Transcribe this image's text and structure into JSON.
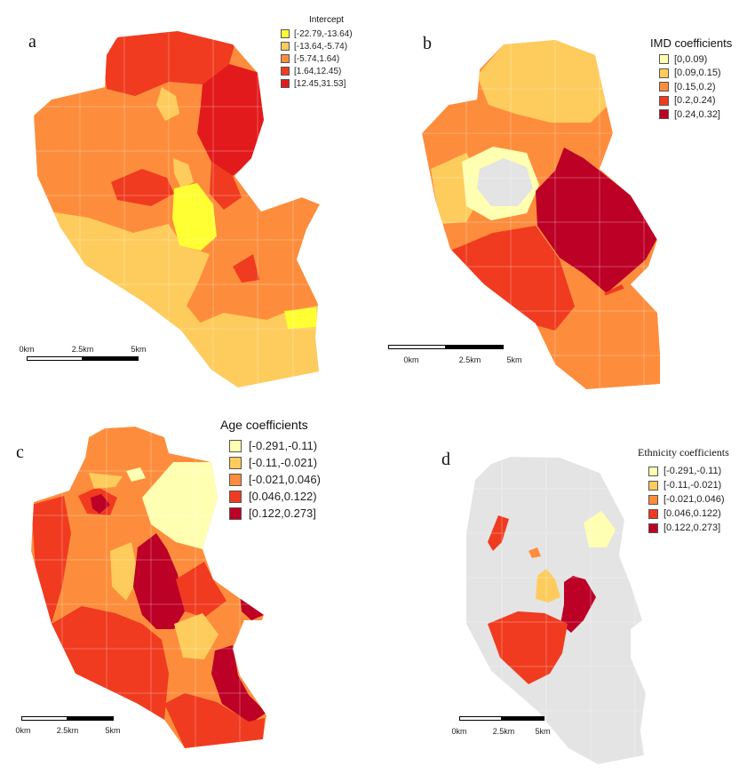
{
  "colors": {
    "yellow": "#ffff33",
    "light_yellow": "#ffffb2",
    "gold": "#fecc5c",
    "orange": "#fd8d3c",
    "red": "#f03b20",
    "dark_red": "#bd0026",
    "no_data": "#e4e4e4",
    "boundary": "#ffffff"
  },
  "scale_labels": [
    "0km",
    "2.5km",
    "5km"
  ],
  "panels": [
    {
      "letter": "a",
      "legend_title": "Intercept",
      "classes": [
        {
          "label": "[-22.79,-13.64)",
          "color": "#ffff33"
        },
        {
          "label": "[-13.64,-5.74)",
          "color": "#fecc5c"
        },
        {
          "label": "[-5.74,1.64)",
          "color": "#fd8d3c"
        },
        {
          "label": "[1.64,12.45)",
          "color": "#f03b20"
        },
        {
          "label": "[12.45,31.53]",
          "color": "#e31a1c"
        }
      ]
    },
    {
      "letter": "b",
      "legend_title": "IMD coefficients",
      "classes": [
        {
          "label": "[0,0.09)",
          "color": "#ffffb2"
        },
        {
          "label": "[0.09,0.15)",
          "color": "#fecc5c"
        },
        {
          "label": "[0.15,0.2)",
          "color": "#fd8d3c"
        },
        {
          "label": "[0.2,0.24)",
          "color": "#f03b20"
        },
        {
          "label": "[0.24,0.32]",
          "color": "#bd0026"
        }
      ]
    },
    {
      "letter": "c",
      "legend_title": "Age coefficients",
      "classes": [
        {
          "label": "[-0.291,-0.11)",
          "color": "#ffffb2"
        },
        {
          "label": "[-0.11,-0.021)",
          "color": "#fecc5c"
        },
        {
          "label": "[-0.021,0.046)",
          "color": "#fd8d3c"
        },
        {
          "label": "[0.046,0.122)",
          "color": "#f03b20"
        },
        {
          "label": "[0.122,0.273]",
          "color": "#bd0026"
        }
      ]
    },
    {
      "letter": "d",
      "legend_title": "Ethnicity coefficients",
      "classes": [
        {
          "label": "[-0.291,-0.11)",
          "color": "#ffffb2"
        },
        {
          "label": "[-0.11,-0.021)",
          "color": "#fecc5c"
        },
        {
          "label": "[-0.021,0.046)",
          "color": "#fd8d3c"
        },
        {
          "label": "[0.046,0.122)",
          "color": "#f03b20"
        },
        {
          "label": "[0.122,0.273]",
          "color": "#bd0026"
        }
      ]
    }
  ]
}
